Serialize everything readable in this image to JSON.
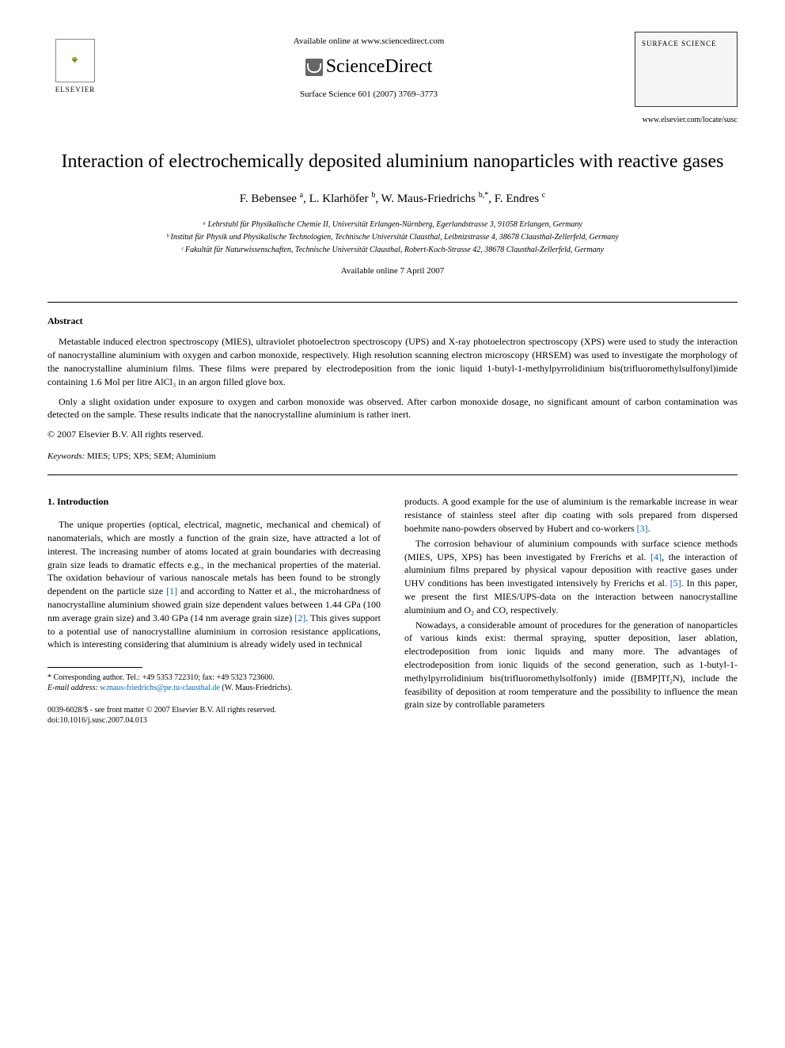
{
  "header": {
    "available_online": "Available online at www.sciencedirect.com",
    "sciencedirect": "ScienceDirect",
    "journal_ref": "Surface Science 601 (2007) 3769–3773",
    "elsevier_label": "ELSEVIER",
    "journal_box_label": "SURFACE SCIENCE",
    "journal_url": "www.elsevier.com/locate/susc"
  },
  "article": {
    "title": "Interaction of electrochemically deposited aluminium nanoparticles with reactive gases",
    "authors_html": "F. Bebensee <sup>a</sup>, L. Klarhöfer <sup>b</sup>, W. Maus-Friedrichs <sup>b,*</sup>, F. Endres <sup>c</sup>",
    "affiliations": [
      "ᵃ Lehrstuhl für Physikalische Chemie II, Universität Erlangen-Nürnberg, Egerlandstrasse 3, 91058 Erlangen, Germany",
      "ᵇ Institut für Physik und Physikalische Technologien, Technische Universität Clausthal, Leibnizstrasse 4, 38678 Clausthal-Zellerfeld, Germany",
      "ᶜ Fakultät für Naturwissenschaften, Technische Universität Clausthal, Robert-Koch-Strasse 42, 38678 Clausthal-Zellerfeld, Germany"
    ],
    "pub_date": "Available online 7 April 2007"
  },
  "abstract": {
    "heading": "Abstract",
    "p1": "Metastable induced electron spectroscopy (MIES), ultraviolet photoelectron spectroscopy (UPS) and X-ray photoelectron spectroscopy (XPS) were used to study the interaction of nanocrystalline aluminium with oxygen and carbon monoxide, respectively. High resolution scanning electron microscopy (HRSEM) was used to investigate the morphology of the nanocrystalline aluminium films. These films were prepared by electrodeposition from the ionic liquid 1-butyl-1-methylpyrrolidinium bis(trifluoromethylsulfonyl)imide containing 1.6 Mol per litre AlCl₃ in an argon filled glove box.",
    "p2": "Only a slight oxidation under exposure to oxygen and carbon monoxide was observed. After carbon monoxide dosage, no significant amount of carbon contamination was detected on the sample. These results indicate that the nanocrystalline aluminium is rather inert.",
    "copyright": "© 2007 Elsevier B.V. All rights reserved.",
    "keywords_label": "Keywords:",
    "keywords": " MIES; UPS; XPS; SEM; Aluminium"
  },
  "body": {
    "section_heading": "1. Introduction",
    "col1_p1a": "The unique properties (optical, electrical, magnetic, mechanical and chemical) of nanomaterials, which are mostly a function of the grain size, have attracted a lot of interest. The increasing number of atoms located at grain boundaries with decreasing grain size leads to dramatic effects e.g., in the mechanical properties of the material. The oxidation behaviour of various nanoscale metals has been found to be strongly dependent on the particle size ",
    "ref1": "[1]",
    "col1_p1b": " and according to Natter et al., the microhardness of nanocrystalline aluminium showed grain size dependent values between 1.44 GPa (100 nm average grain size) and 3.40 GPa (14 nm average grain size) ",
    "ref2": "[2]",
    "col1_p1c": ". This gives support to a potential use of nanocrystalline aluminium in corrosion resistance applications, which is interesting considering that aluminium is already widely used in technical ",
    "col2_p1a": "products. A good example for the use of aluminium is the remarkable increase in wear resistance of stainless steel after dip coating with sols prepared from dispersed boehmite nano-powders observed by Hubert and co-workers ",
    "ref3": "[3]",
    "col2_p1b": ".",
    "col2_p2a": "The corrosion behaviour of aluminium compounds with surface science methods (MIES, UPS, XPS) has been investigated by Frerichs et al. ",
    "ref4": "[4]",
    "col2_p2b": ", the interaction of aluminium films prepared by physical vapour deposition with reactive gases under UHV conditions has been investigated intensively by Frerichs et al. ",
    "ref5": "[5]",
    "col2_p2c": ". In this paper, we present the first MIES/UPS-data on the interaction between nanocrystalline aluminium and O₂ and CO, respectively.",
    "col2_p3": "Nowadays, a considerable amount of procedures for the generation of nanoparticles of various kinds exist: thermal spraying, sputter deposition, laser ablation, electrodeposition from ionic liquids and many more. The advantages of electrodeposition from ionic liquids of the second generation, such as 1-butyl-1-methylpyrrolidinium bis(trifluoromethylsolfonly) imide ([BMP]Tf₂N), include the feasibility of deposition at room temperature and the possibility to influence the mean grain size by controllable parameters"
  },
  "footnote": {
    "corresponding": "* Corresponding author. Tel.: +49 5353 722310; fax: +49 5323 723600.",
    "email_label": "E-mail address: ",
    "email": "w.maus-friedrichs@pe.tu-clausthal.de",
    "email_suffix": " (W. Maus-Friedrichs)."
  },
  "bottom": {
    "issn": "0039-6028/$ - see front matter © 2007 Elsevier B.V. All rights reserved.",
    "doi": "doi:10.1016/j.susc.2007.04.013"
  },
  "colors": {
    "link": "#0066cc",
    "text": "#000000",
    "background": "#ffffff"
  }
}
